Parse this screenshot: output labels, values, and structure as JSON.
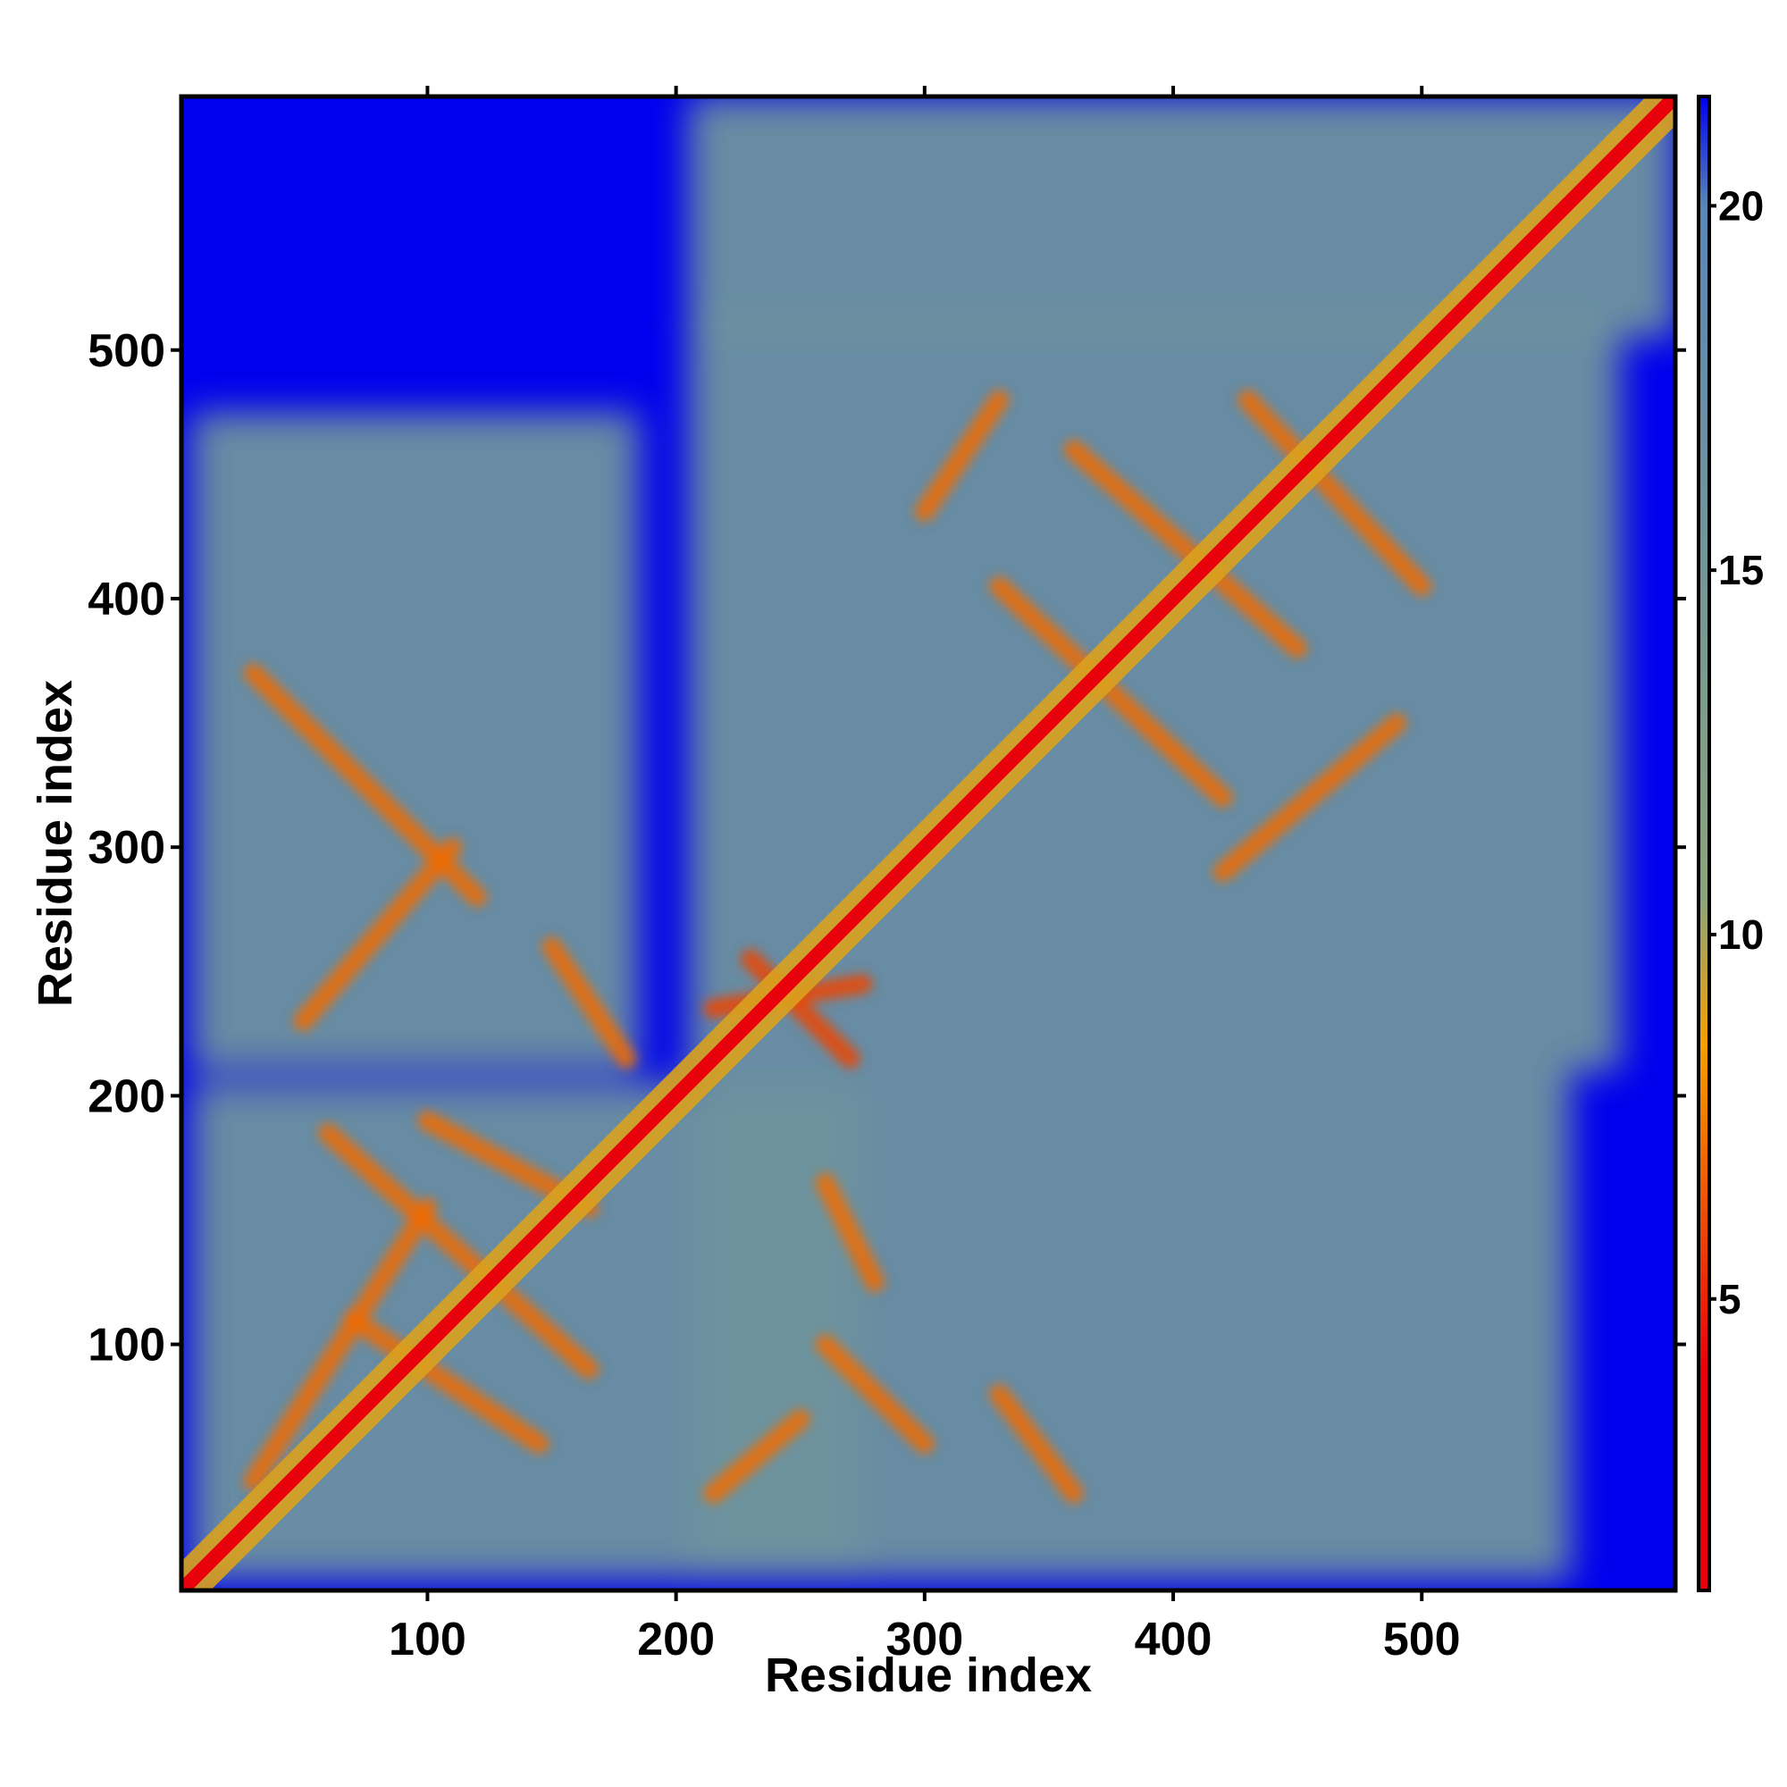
{
  "chart_data": {
    "type": "heatmap",
    "title": "",
    "xlabel": "Residue index",
    "ylabel": "Residue index",
    "xlim": [
      1,
      602
    ],
    "ylim": [
      1,
      602
    ],
    "x_ticks": [
      100,
      200,
      300,
      400,
      500
    ],
    "y_ticks": [
      100,
      200,
      300,
      400,
      500
    ],
    "x_tick_labels": [
      "100",
      "200",
      "300",
      "400",
      "500"
    ],
    "y_tick_labels": [
      "100",
      "200",
      "300",
      "400",
      "500"
    ],
    "grid": false,
    "colorbar": {
      "range": [
        1,
        21.5
      ],
      "ticks": [
        5,
        10,
        15,
        20
      ],
      "tick_labels": [
        "5",
        "10",
        "15",
        "20"
      ],
      "colors": {
        "low": "#e8000b",
        "mid_low": "#f5a000",
        "mid": "#8aa57a",
        "high": "#5a86b8",
        "background": "#0000ee"
      }
    },
    "diagonal": {
      "from": 1,
      "to": 602,
      "value": 1
    },
    "domains": [
      {
        "x": [
          5,
          275
        ],
        "y": [
          5,
          205
        ],
        "value": 16
      },
      {
        "x": [
          205,
          560
        ],
        "y": [
          5,
          210
        ],
        "value": 16
      },
      {
        "x": [
          5,
          185
        ],
        "y": [
          210,
          475
        ],
        "value": 16
      },
      {
        "x": [
          205,
          580
        ],
        "y": [
          210,
          515
        ],
        "value": 16
      },
      {
        "x": [
          205,
          602
        ],
        "y": [
          505,
          602
        ],
        "value": 16
      }
    ],
    "contact_bands": [
      {
        "from": [
          60,
          185
        ],
        "to": [
          165,
          90
        ],
        "value": 7
      },
      {
        "from": [
          30,
          45
        ],
        "to": [
          100,
          155
        ],
        "value": 7
      },
      {
        "from": [
          165,
          155
        ],
        "to": [
          100,
          190
        ],
        "value": 7
      },
      {
        "from": [
          70,
          110
        ],
        "to": [
          145,
          60
        ],
        "value": 7
      },
      {
        "from": [
          230,
          255
        ],
        "to": [
          270,
          215
        ],
        "value": 6
      },
      {
        "from": [
          215,
          235
        ],
        "to": [
          275,
          245
        ],
        "value": 6
      },
      {
        "from": [
          300,
          435
        ],
        "to": [
          330,
          480
        ],
        "value": 7
      },
      {
        "from": [
          330,
          405
        ],
        "to": [
          420,
          320
        ],
        "value": 7
      },
      {
        "from": [
          360,
          460
        ],
        "to": [
          450,
          380
        ],
        "value": 7
      },
      {
        "from": [
          430,
          480
        ],
        "to": [
          500,
          405
        ],
        "value": 7
      },
      {
        "from": [
          420,
          290
        ],
        "to": [
          490,
          350
        ],
        "value": 7
      },
      {
        "from": [
          30,
          370
        ],
        "to": [
          120,
          280
        ],
        "value": 7
      },
      {
        "from": [
          50,
          230
        ],
        "to": [
          110,
          300
        ],
        "value": 7
      },
      {
        "from": [
          150,
          260
        ],
        "to": [
          180,
          215
        ],
        "value": 7
      },
      {
        "from": [
          215,
          40
        ],
        "to": [
          250,
          70
        ],
        "value": 7
      },
      {
        "from": [
          260,
          100
        ],
        "to": [
          300,
          60
        ],
        "value": 7
      },
      {
        "from": [
          330,
          80
        ],
        "to": [
          360,
          40
        ],
        "value": 7
      },
      {
        "from": [
          260,
          165
        ],
        "to": [
          280,
          125
        ],
        "value": 7
      }
    ]
  }
}
